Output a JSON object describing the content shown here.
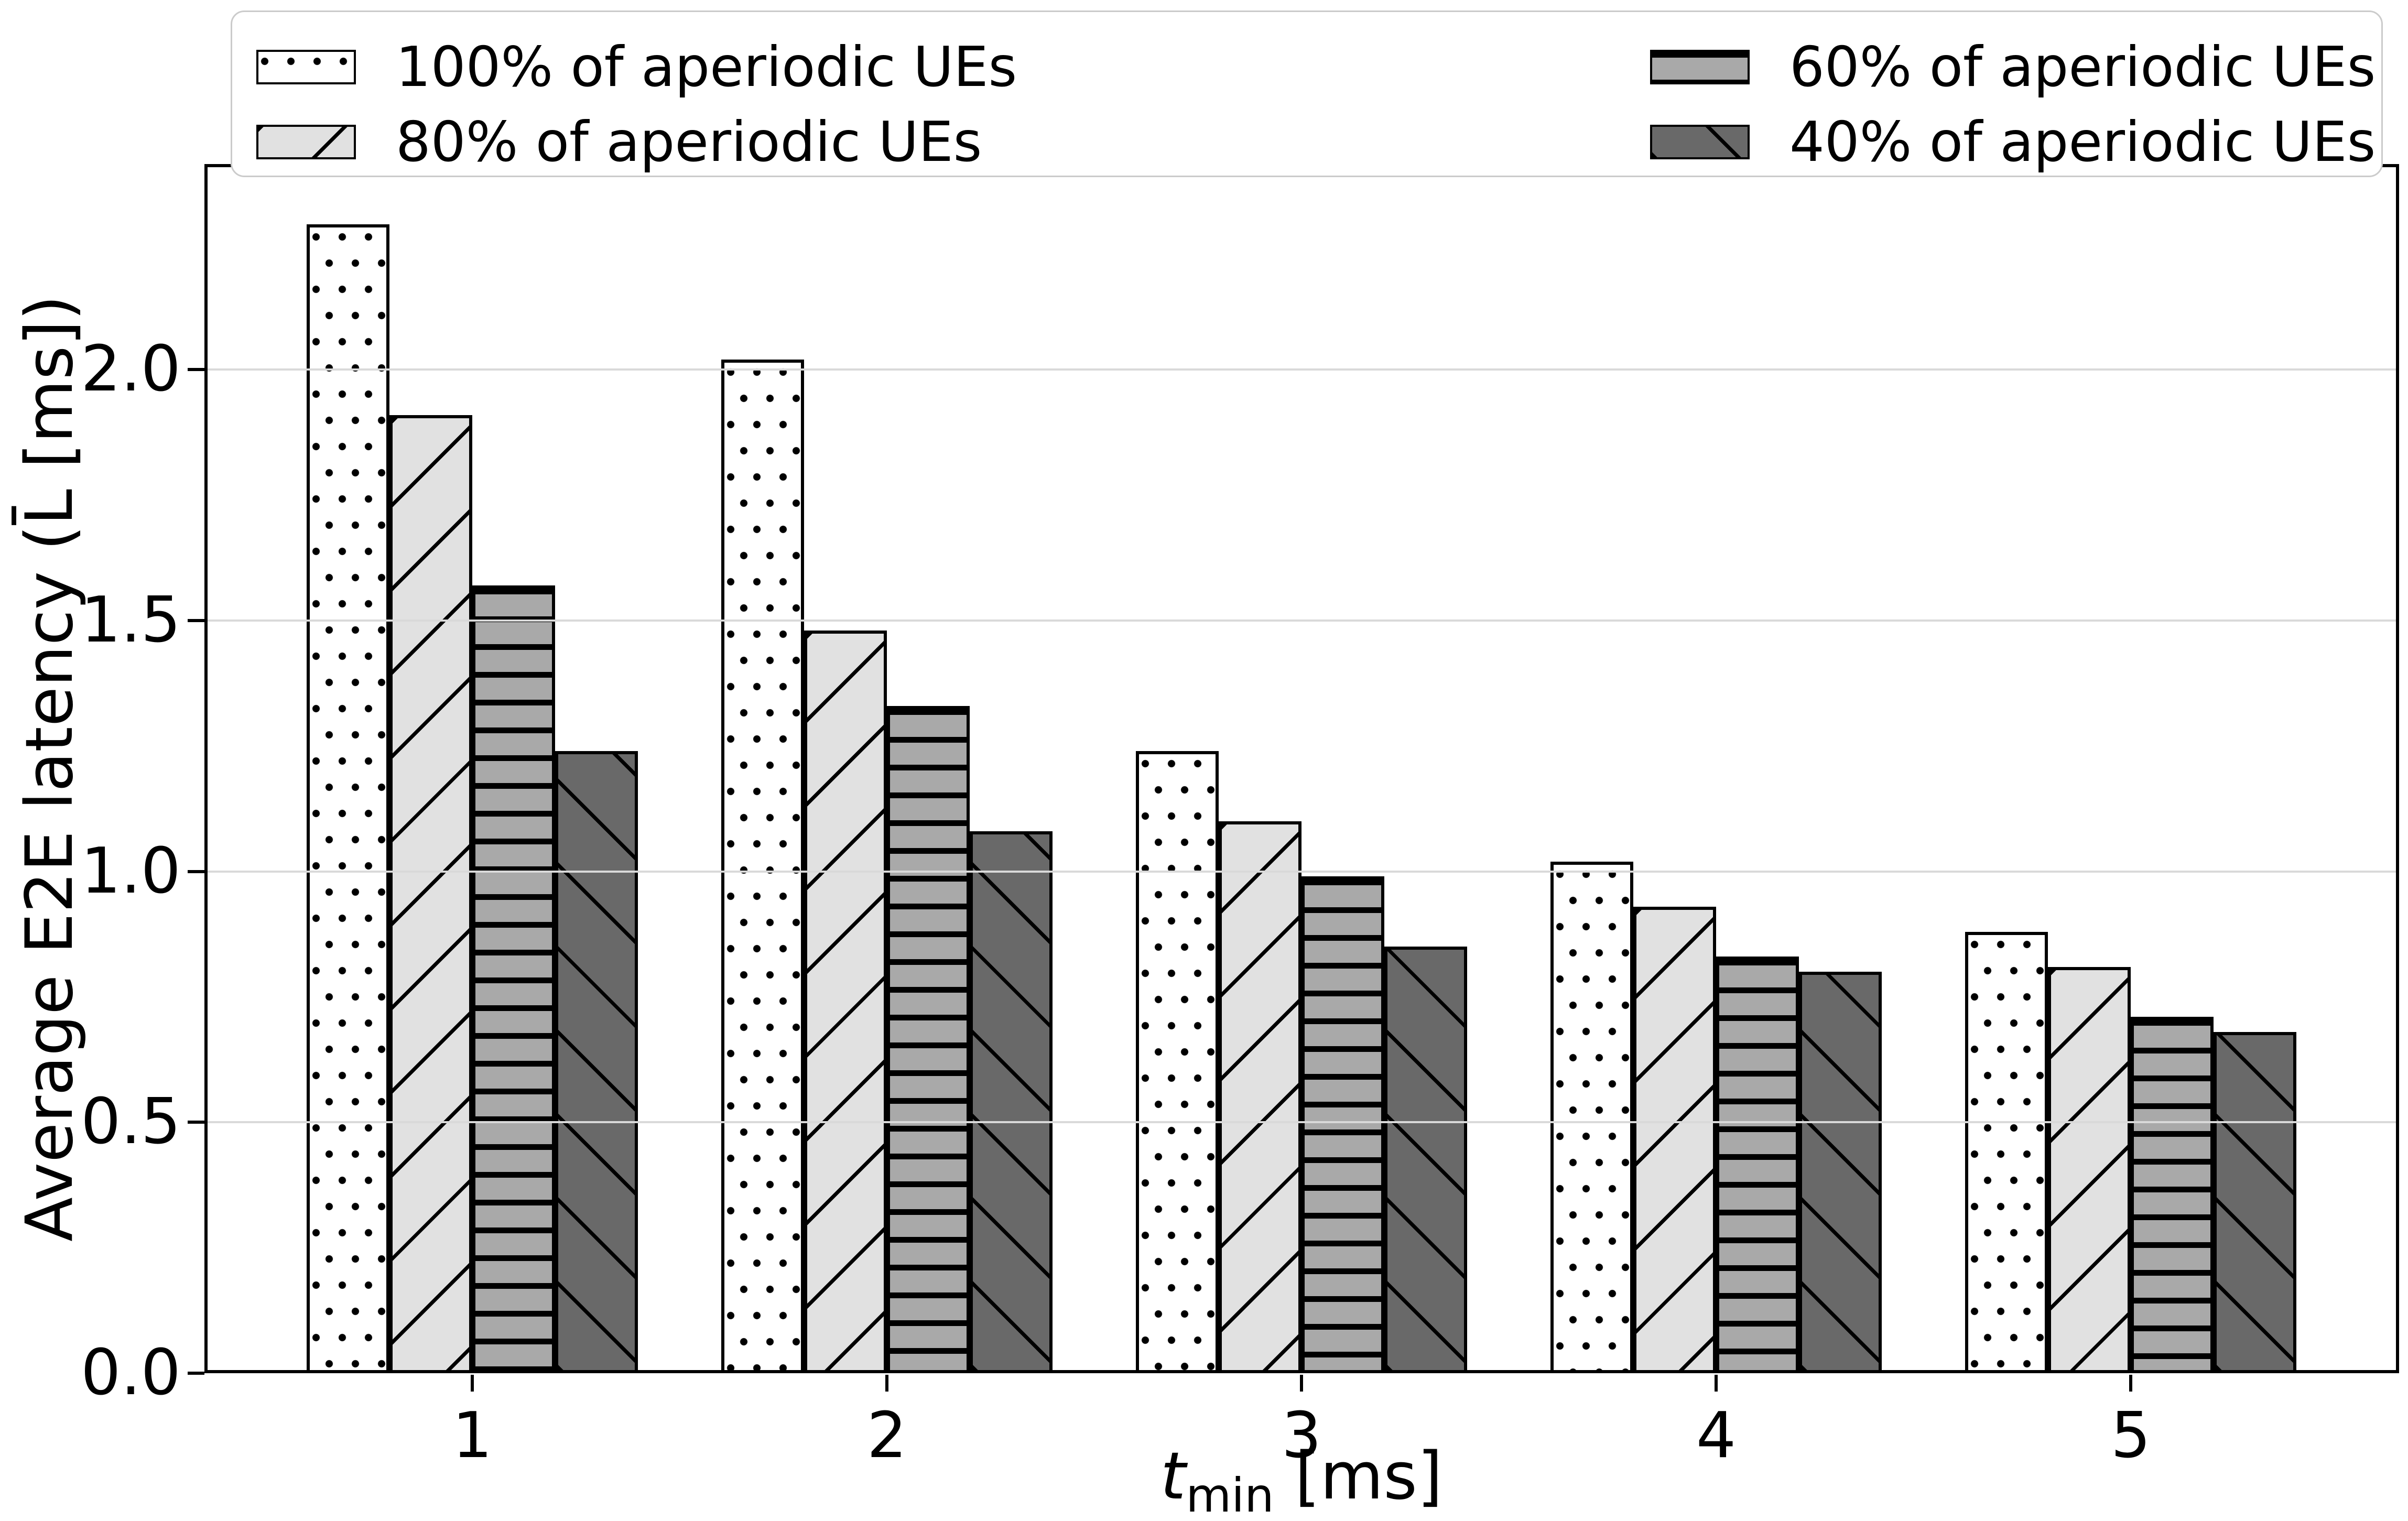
{
  "chart_data": {
    "type": "bar",
    "categories": [
      "1",
      "2",
      "3",
      "4",
      "5"
    ],
    "series": [
      {
        "name": "100% of aperiodic UEs",
        "pattern": "dots",
        "fill": "#ffffff",
        "values": [
          2.29,
          2.02,
          1.24,
          1.02,
          0.88
        ]
      },
      {
        "name": "80% of aperiodic UEs",
        "pattern": "diag-forward",
        "fill": "#e1e1e1",
        "values": [
          1.91,
          1.48,
          1.1,
          0.93,
          0.81
        ]
      },
      {
        "name": "60% of aperiodic UEs",
        "pattern": "horizontal",
        "fill": "#a9a9a9",
        "values": [
          1.57,
          1.33,
          0.99,
          0.83,
          0.71
        ]
      },
      {
        "name": "40% of aperiodic UEs",
        "pattern": "diag-back",
        "fill": "#696969",
        "values": [
          1.24,
          1.08,
          0.85,
          0.8,
          0.68
        ]
      }
    ],
    "title": "",
    "xlabel": {
      "var": "t",
      "sub": "min",
      "unit": " [ms]"
    },
    "ylabel": "Average E2E latency (L̄ [ms])",
    "yticks": [
      "0.0",
      "0.5",
      "1.0",
      "1.5",
      "2.0"
    ],
    "ytick_values": [
      0.0,
      0.5,
      1.0,
      1.5,
      2.0
    ],
    "ylim": [
      0,
      2.41
    ],
    "grid": "horizontal",
    "grid_color": "#d9d9d9",
    "legend_position": "top",
    "edge_color": "#000000"
  },
  "legend": {
    "items": [
      {
        "label": "100% of aperiodic UEs",
        "pattern": "dots"
      },
      {
        "label": "80% of aperiodic UEs",
        "pattern": "diag-forward"
      },
      {
        "label": "60% of aperiodic UEs",
        "pattern": "horizontal"
      },
      {
        "label": "40% of aperiodic UEs",
        "pattern": "diag-back"
      }
    ]
  }
}
